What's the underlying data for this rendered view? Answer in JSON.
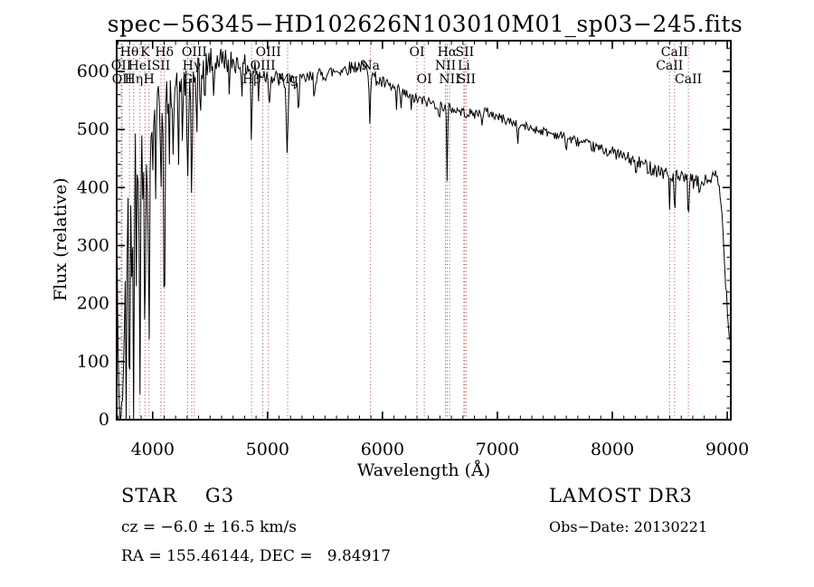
{
  "title": "spec−56345−HD102626N103010M01_sp03−245.fits",
  "x_axis": {
    "label": "Wavelength (Å)",
    "tick_labels": [
      "4000",
      "5000",
      "6000",
      "7000",
      "8000",
      "9000"
    ],
    "tick_values": [
      4000,
      5000,
      6000,
      7000,
      8000,
      9000
    ],
    "minor_step": 100,
    "range": [
      3687,
      9031
    ]
  },
  "y_axis": {
    "label": "Flux (relative)",
    "tick_labels": [
      "0",
      "100",
      "200",
      "300",
      "400",
      "500",
      "600"
    ],
    "tick_values": [
      0,
      100,
      200,
      300,
      400,
      500,
      600
    ],
    "minor_step": 20,
    "range": [
      0,
      653
    ]
  },
  "annotations": {
    "class_label": "STAR    G3",
    "cz": "cz = −6.0 ± 16.5 km/s",
    "radec": "RA = 155.46144, DEC =   9.84917",
    "survey": "LAMOST DR3",
    "obs_date": "Obs−Date: 20130221"
  },
  "chart_data": {
    "type": "line",
    "title": "spec−56345−HD102626N103010M01_sp03−245.fits",
    "xlabel": "Wavelength (Å)",
    "ylabel": "Flux (relative)",
    "xlim": [
      3687,
      9031
    ],
    "ylim": [
      0,
      653
    ],
    "grid": false,
    "spectrum_color": "#000000",
    "line_marker_color": "#a04040",
    "spectral_lines": [
      {
        "name": "OII",
        "wavelength": 3727,
        "row": 2
      },
      {
        "name": "OII",
        "wavelength": 3734,
        "row": 3
      },
      {
        "name": "Hθ",
        "wavelength": 3798,
        "row": 1
      },
      {
        "name": "Hη",
        "wavelength": 3835,
        "row": 3
      },
      {
        "name": "HeI",
        "wavelength": 3889,
        "row": 2
      },
      {
        "name": "K",
        "wavelength": 3934,
        "row": 1
      },
      {
        "name": "H",
        "wavelength": 3968,
        "row": 3
      },
      {
        "name": "SII",
        "wavelength": 4072,
        "row": 2
      },
      {
        "name": "Hδ",
        "wavelength": 4102,
        "row": 1
      },
      {
        "name": "G",
        "wavelength": 4305,
        "row": 3
      },
      {
        "name": "Hγ",
        "wavelength": 4340,
        "row": 2
      },
      {
        "name": "OIII",
        "wavelength": 4363,
        "row": 1
      },
      {
        "name": "Hβ",
        "wavelength": 4861,
        "row": 3
      },
      {
        "name": "OIII",
        "wavelength": 4959,
        "row": 2
      },
      {
        "name": "OIII",
        "wavelength": 5007,
        "row": 1
      },
      {
        "name": "Mg",
        "wavelength": 5175,
        "row": 3
      },
      {
        "name": "Na",
        "wavelength": 5896,
        "row": 2
      },
      {
        "name": "OI",
        "wavelength": 6300,
        "row": 1
      },
      {
        "name": "OI",
        "wavelength": 6364,
        "row": 3
      },
      {
        "name": "NII",
        "wavelength": 6548,
        "row": 2
      },
      {
        "name": "Hα",
        "wavelength": 6563,
        "row": 1
      },
      {
        "name": "NII",
        "wavelength": 6584,
        "row": 3
      },
      {
        "name": "Li",
        "wavelength": 6708,
        "row": 2
      },
      {
        "name": "SII",
        "wavelength": 6716,
        "row": 1
      },
      {
        "name": "SII",
        "wavelength": 6731,
        "row": 3
      },
      {
        "name": "CaII",
        "wavelength": 8498,
        "row": 2
      },
      {
        "name": "CaII",
        "wavelength": 8542,
        "row": 1
      },
      {
        "name": "CaII",
        "wavelength": 8662,
        "row": 3
      }
    ],
    "continuum_envelope": [
      [
        3687,
        290
      ],
      [
        3715,
        300
      ],
      [
        3745,
        320
      ],
      [
        3775,
        345
      ],
      [
        3805,
        390
      ],
      [
        3840,
        445
      ],
      [
        3875,
        480
      ],
      [
        3905,
        505
      ],
      [
        3945,
        520
      ],
      [
        3985,
        530
      ],
      [
        4030,
        545
      ],
      [
        4080,
        550
      ],
      [
        4130,
        555
      ],
      [
        4180,
        568
      ],
      [
        4240,
        578
      ],
      [
        4300,
        582
      ],
      [
        4360,
        592
      ],
      [
        4420,
        606
      ],
      [
        4480,
        615
      ],
      [
        4550,
        620
      ],
      [
        4620,
        622
      ],
      [
        4700,
        617
      ],
      [
        4780,
        612
      ],
      [
        4860,
        606
      ],
      [
        4940,
        598
      ],
      [
        5020,
        590
      ],
      [
        5100,
        586
      ],
      [
        5200,
        582
      ],
      [
        5320,
        586
      ],
      [
        5450,
        593
      ],
      [
        5580,
        600
      ],
      [
        5700,
        606
      ],
      [
        5800,
        610
      ],
      [
        5880,
        600
      ],
      [
        5960,
        584
      ],
      [
        6060,
        574
      ],
      [
        6180,
        562
      ],
      [
        6300,
        552
      ],
      [
        6420,
        546
      ],
      [
        6540,
        540
      ],
      [
        6660,
        532
      ],
      [
        6780,
        526
      ],
      [
        6900,
        531
      ],
      [
        7000,
        522
      ],
      [
        7120,
        513
      ],
      [
        7260,
        504
      ],
      [
        7400,
        497
      ],
      [
        7550,
        489
      ],
      [
        7700,
        479
      ],
      [
        7850,
        469
      ],
      [
        8000,
        461
      ],
      [
        8150,
        449
      ],
      [
        8300,
        437
      ],
      [
        8450,
        426
      ],
      [
        8600,
        415
      ],
      [
        8750,
        408
      ],
      [
        8850,
        414
      ],
      [
        8900,
        421
      ],
      [
        8930,
        400
      ],
      [
        8955,
        350
      ],
      [
        8980,
        265
      ],
      [
        9005,
        175
      ],
      [
        9025,
        150
      ]
    ],
    "absorption_dips": [
      [
        3703,
        220,
        5
      ],
      [
        3712,
        270,
        5
      ],
      [
        3722,
        240,
        5
      ],
      [
        3734,
        300,
        5
      ],
      [
        3750,
        330,
        5
      ],
      [
        3771,
        360,
        5
      ],
      [
        3798,
        340,
        5
      ],
      [
        3820,
        220,
        4
      ],
      [
        3835,
        365,
        5
      ],
      [
        3860,
        190,
        4
      ],
      [
        3889,
        400,
        5
      ],
      [
        3912,
        150,
        4
      ],
      [
        3934,
        420,
        5
      ],
      [
        3952,
        170,
        4
      ],
      [
        3968,
        415,
        5
      ],
      [
        4000,
        130,
        4
      ],
      [
        4026,
        140,
        4
      ],
      [
        4072,
        150,
        4
      ],
      [
        4102,
        460,
        5
      ],
      [
        4144,
        130,
        4
      ],
      [
        4180,
        90,
        4
      ],
      [
        4226,
        150,
        4
      ],
      [
        4260,
        90,
        4
      ],
      [
        4305,
        190,
        6
      ],
      [
        4340,
        220,
        5
      ],
      [
        4383,
        150,
        4
      ],
      [
        4415,
        100,
        4
      ],
      [
        4455,
        90,
        4
      ],
      [
        4530,
        70,
        5
      ],
      [
        4668,
        70,
        5
      ],
      [
        4780,
        50,
        4
      ],
      [
        4861,
        160,
        4
      ],
      [
        4920,
        60,
        4
      ],
      [
        5015,
        50,
        4
      ],
      [
        5170,
        115,
        8
      ],
      [
        5270,
        70,
        5
      ],
      [
        5406,
        40,
        4
      ],
      [
        5890,
        78,
        5
      ],
      [
        6122,
        35,
        4
      ],
      [
        6162,
        30,
        4
      ],
      [
        6250,
        25,
        4
      ],
      [
        6495,
        35,
        4
      ],
      [
        6563,
        138,
        4
      ],
      [
        6870,
        25,
        4
      ],
      [
        7180,
        30,
        5
      ],
      [
        7600,
        25,
        4
      ],
      [
        8205,
        35,
        4
      ],
      [
        8498,
        58,
        4
      ],
      [
        8542,
        80,
        4
      ],
      [
        8662,
        72,
        4
      ],
      [
        8760,
        30,
        4
      ]
    ],
    "noise_profile": [
      [
        3687,
        105
      ],
      [
        3760,
        95
      ],
      [
        3830,
        80
      ],
      [
        3900,
        62
      ],
      [
        3960,
        50
      ],
      [
        4030,
        40
      ],
      [
        4120,
        34
      ],
      [
        4250,
        30
      ],
      [
        4400,
        27
      ],
      [
        4550,
        24
      ],
      [
        4700,
        21
      ],
      [
        4900,
        18
      ],
      [
        5100,
        15
      ],
      [
        5400,
        13
      ],
      [
        5700,
        12
      ],
      [
        6000,
        12
      ],
      [
        6300,
        10
      ],
      [
        6600,
        9
      ],
      [
        6900,
        9
      ],
      [
        7200,
        8
      ],
      [
        7500,
        8
      ],
      [
        7800,
        9
      ],
      [
        8100,
        11
      ],
      [
        8400,
        13
      ],
      [
        8700,
        13
      ],
      [
        8900,
        11
      ],
      [
        9030,
        18
      ]
    ],
    "noise_seed": 42
  }
}
